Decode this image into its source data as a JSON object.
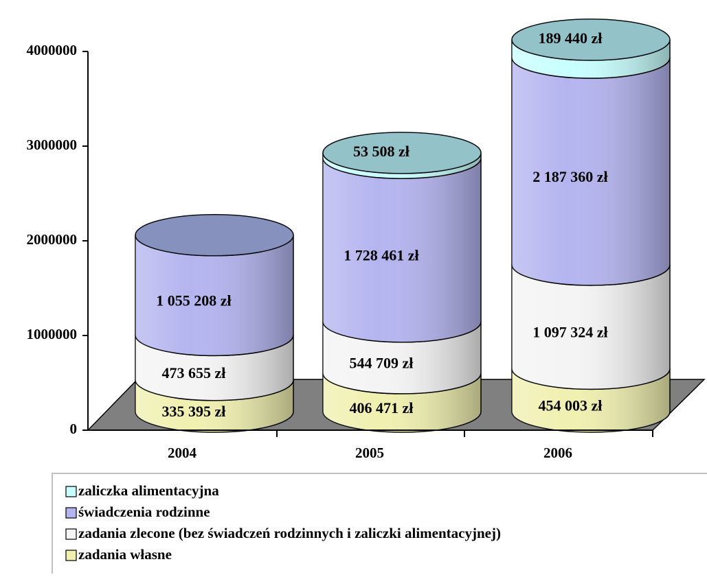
{
  "chart_data": {
    "type": "stacked-cylinder",
    "categories": [
      "2004",
      "2005",
      "2006"
    ],
    "series": [
      {
        "name": "zadania własne",
        "color": "#f0f0b0",
        "values": [
          335395,
          406471,
          454003
        ],
        "value_labels": [
          "335 395 zł",
          "406 471 zł",
          "454 003 zł"
        ]
      },
      {
        "name": "zadania zlecone (bez świadczeń rodzinnych i zaliczki alimentacyjnej)",
        "color": "#f4f4f4",
        "values": [
          473655,
          544709,
          1097324
        ],
        "value_labels": [
          "473 655 zł",
          "544 709 zł",
          "1 097 324 zł"
        ]
      },
      {
        "name": "świadczenia rodzinne",
        "color": "#b4b4f0",
        "values": [
          1055208,
          1728461,
          2187360
        ],
        "value_labels": [
          "1 055 208 zł",
          "1 728 461 zł",
          "2 187 360 zł"
        ]
      },
      {
        "name": "zaliczka alimentacyjna",
        "color": "#c8ffff",
        "values": [
          null,
          53508,
          189440
        ],
        "value_labels": [
          null,
          "53 508 zł",
          "189 440 zł"
        ]
      }
    ],
    "ylim": [
      0,
      4000000
    ],
    "yticks": [
      0,
      1000000,
      2000000,
      3000000,
      4000000
    ]
  }
}
